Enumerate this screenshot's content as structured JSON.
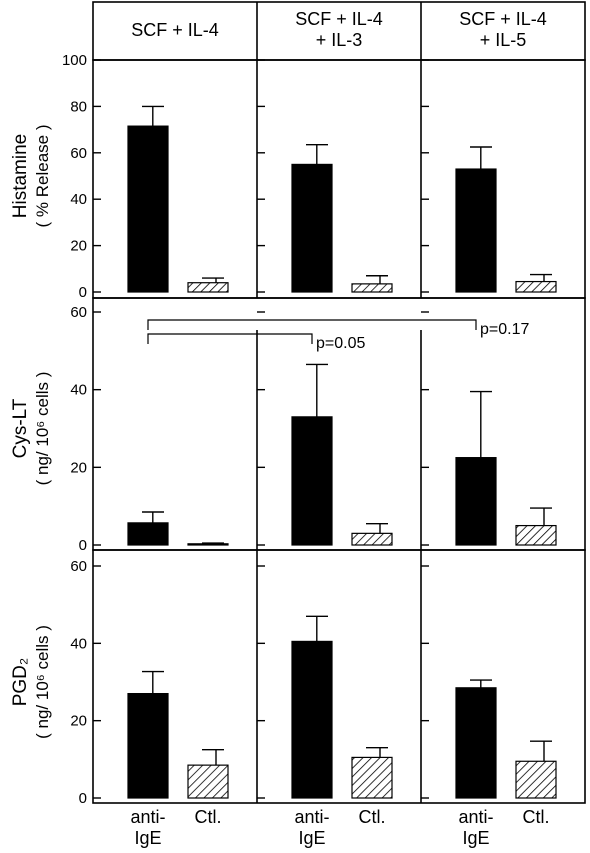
{
  "chart_data": {
    "type": "bar",
    "conditions": [
      "SCF + IL-4",
      "SCF + IL-4 + IL-3",
      "SCF + IL-4 + IL-5"
    ],
    "condition_header_lines": [
      [
        "SCF + IL-4"
      ],
      [
        "SCF + IL-4",
        "+ IL-3"
      ],
      [
        "SCF + IL-4",
        "+ IL-5"
      ]
    ],
    "categories": [
      "anti-IgE",
      "Ctl."
    ],
    "category_label_lines": [
      [
        "anti-",
        "IgE"
      ],
      [
        "Ctl."
      ]
    ],
    "panels": [
      {
        "ylabel": "Histamine",
        "ylabel_sub": "( % Release )",
        "ylim": [
          0,
          100
        ],
        "yticks": [
          0,
          20,
          40,
          60,
          80,
          100
        ],
        "values": [
          [
            71.5,
            4
          ],
          [
            55,
            3.5
          ],
          [
            53,
            4.5
          ]
        ],
        "errors": [
          [
            8.5,
            2
          ],
          [
            8.5,
            3.5
          ],
          [
            9.5,
            3
          ]
        ]
      },
      {
        "ylabel": "Cys-LT",
        "ylabel_sub": "( ng/ 10⁶ cells )",
        "ylim": [
          0,
          60
        ],
        "yticks": [
          0,
          20,
          40,
          60
        ],
        "values": [
          [
            5.7,
            0.3
          ],
          [
            33,
            3
          ],
          [
            22.5,
            5
          ]
        ],
        "errors": [
          [
            2.8,
            0.2
          ],
          [
            13.5,
            2.5
          ],
          [
            17,
            4.5
          ]
        ],
        "annotations": [
          {
            "from_condition": 0,
            "to_condition": 1,
            "text": "p=0.05"
          },
          {
            "from_condition": 0,
            "to_condition": 2,
            "text": "p=0.17"
          }
        ]
      },
      {
        "ylabel": "PGD₂",
        "ylabel_sub": "( ng/ 10⁶ cells )",
        "ylim": [
          0,
          60
        ],
        "yticks": [
          0,
          20,
          40,
          60
        ],
        "values": [
          [
            27,
            8.5
          ],
          [
            40.5,
            10.5
          ],
          [
            28.5,
            9.5
          ]
        ],
        "errors": [
          [
            5.7,
            4
          ],
          [
            6.5,
            2.5
          ],
          [
            2,
            5.2
          ]
        ]
      }
    ],
    "series_colors": [
      "#000000",
      "hatched"
    ]
  }
}
